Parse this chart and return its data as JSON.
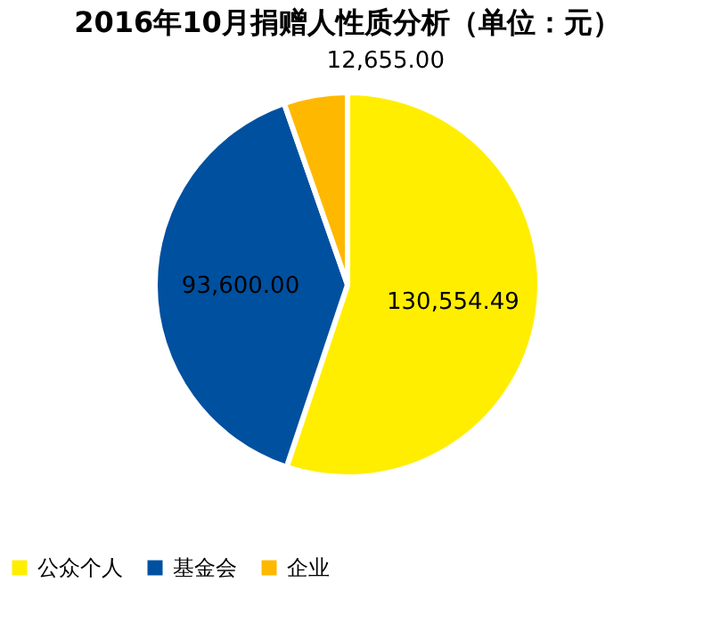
{
  "chart_data": {
    "type": "pie",
    "title": "2016年10月捐赠人性质分析（单位：元）",
    "categories": [
      "公众个人",
      "基金会",
      "企业"
    ],
    "values": [
      130554.49,
      93600.0,
      12655.0
    ],
    "value_labels": [
      "130,554.49",
      "93,600.00",
      "12,655.00"
    ],
    "colors": [
      "#ffee00",
      "#0050a0",
      "#ffb800"
    ],
    "legend": "bottom"
  }
}
